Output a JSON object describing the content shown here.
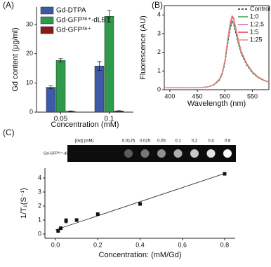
{
  "chart_data": [
    {
      "type": "bar",
      "panel_label": "(A)",
      "ylabel": "Gd content (μg/ml)",
      "xlabel": "Concentration (mM)",
      "categories": [
        "0.05",
        "0.1"
      ],
      "series": [
        {
          "name": "Gd-DTPA",
          "color": "#3c5aa6",
          "values": [
            8.5,
            15.8
          ],
          "errors": [
            0.5,
            1.5
          ]
        },
        {
          "name": "Gd-GFP³⁶⁺-dLBT",
          "color": "#2f9a4b",
          "values": [
            17.7,
            32.8
          ],
          "errors": [
            0.6,
            2.0
          ]
        },
        {
          "name": "Gd-GFP³⁶⁺",
          "color": "#8a1c1c",
          "values": [
            0.3,
            0.4
          ],
          "errors": [
            0.1,
            0.1
          ]
        }
      ],
      "ylim": [
        0,
        36
      ],
      "yticks": [
        0,
        10,
        20,
        30
      ],
      "legend": "upper left"
    },
    {
      "type": "line",
      "panel_label": "(B)",
      "ylabel": "Fluorescence (AU)",
      "xlabel": "Wavelength (nm)",
      "x": [
        390,
        420,
        450,
        470,
        480,
        490,
        495,
        500,
        505,
        510,
        513,
        516,
        520,
        525,
        530,
        540,
        550,
        560,
        570,
        580
      ],
      "series": [
        {
          "name": "Control",
          "color": "#222222",
          "dashed": true,
          "values": [
            0.1,
            0.1,
            0.1,
            0.15,
            0.25,
            0.5,
            0.8,
            1.4,
            2.4,
            3.3,
            3.6,
            3.5,
            3.0,
            2.4,
            1.9,
            1.3,
            0.9,
            0.65,
            0.5,
            0.4
          ]
        },
        {
          "name": "1:0",
          "color": "#3aa04a",
          "dashed": false,
          "values": [
            0.1,
            0.1,
            0.1,
            0.15,
            0.26,
            0.52,
            0.83,
            1.45,
            2.5,
            3.4,
            3.7,
            3.6,
            3.1,
            2.45,
            1.95,
            1.33,
            0.92,
            0.66,
            0.5,
            0.4
          ]
        },
        {
          "name": "1:2.5",
          "color": "#e0609a",
          "dashed": false,
          "values": [
            0.1,
            0.1,
            0.1,
            0.16,
            0.27,
            0.55,
            0.87,
            1.52,
            2.6,
            3.55,
            3.85,
            3.75,
            3.2,
            2.55,
            2.0,
            1.37,
            0.95,
            0.68,
            0.52,
            0.41
          ]
        },
        {
          "name": "1:5",
          "color": "#e8334a",
          "dashed": false,
          "values": [
            0.1,
            0.1,
            0.1,
            0.16,
            0.28,
            0.57,
            0.9,
            1.57,
            2.7,
            3.65,
            3.95,
            3.85,
            3.3,
            2.62,
            2.05,
            1.4,
            0.97,
            0.7,
            0.53,
            0.42
          ]
        },
        {
          "name": "1:25",
          "color": "#f08a8a",
          "dashed": false,
          "values": [
            0.1,
            0.1,
            0.1,
            0.16,
            0.27,
            0.56,
            0.88,
            1.55,
            2.65,
            3.6,
            3.9,
            3.8,
            3.25,
            2.58,
            2.02,
            1.38,
            0.96,
            0.69,
            0.52,
            0.41
          ]
        }
      ],
      "xlim": [
        390,
        580
      ],
      "ylim": [
        0,
        4.5
      ],
      "xticks": [
        400,
        450,
        500,
        550
      ],
      "yticks": [
        0,
        1,
        2,
        3,
        4
      ],
      "legend": "upper right"
    },
    {
      "type": "scatter",
      "panel_label": "(C)",
      "ylabel": "1/T₁(S⁻¹)",
      "xlabel": "Concentration: (mM/Gd)",
      "strip_title": "[Gd] (mM)",
      "strip_concentrations": [
        0.0125,
        0.025,
        0.05,
        0.1,
        0.2,
        0.4,
        0.8
      ],
      "strip_sample": "Gd-GFP³⁶⁺-dLBT",
      "x": [
        0.0125,
        0.025,
        0.05,
        0.1,
        0.2,
        0.4,
        0.8
      ],
      "values": [
        0.22,
        0.42,
        0.95,
        1.0,
        1.42,
        2.15,
        4.3
      ],
      "errors": [
        0.05,
        0.05,
        0.15,
        0.05,
        0.05,
        0.05,
        0.05
      ],
      "color": "#111111",
      "fit_line": {
        "x": [
          0,
          0.8
        ],
        "values": [
          0.3,
          4.32
        ]
      },
      "xlim": [
        -0.05,
        0.85
      ],
      "ylim": [
        -0.3,
        4.7
      ],
      "xticks": [
        {
          "value": 0,
          "label": "0.0"
        },
        0.2,
        0.4,
        0.6,
        0.8
      ],
      "yticks": [
        0,
        1,
        2,
        3,
        4
      ]
    }
  ]
}
